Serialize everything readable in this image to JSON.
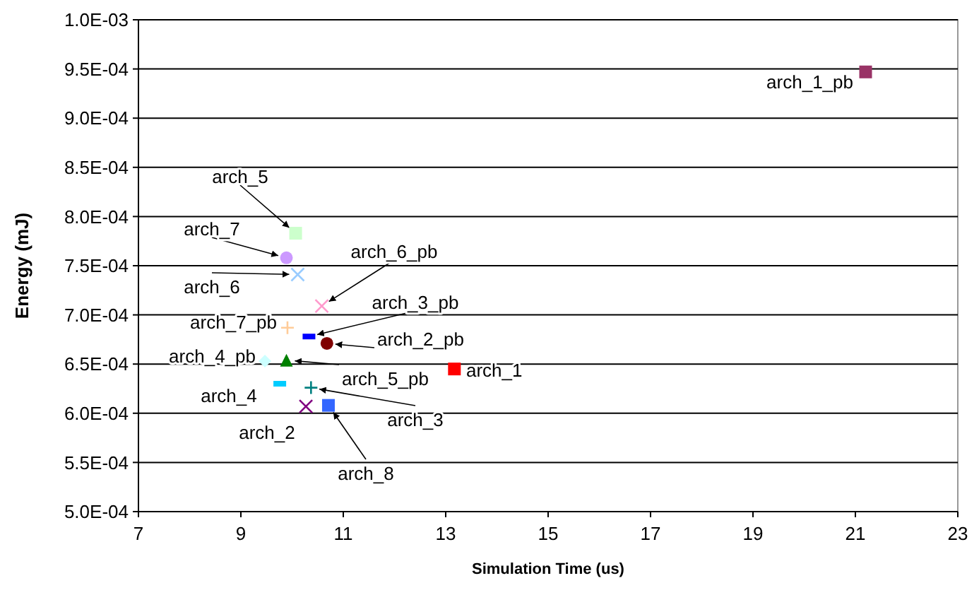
{
  "chart_data": {
    "type": "scatter",
    "xlabel": "Simulation Time (us)",
    "ylabel": "Energy (mJ)",
    "xlim": [
      7,
      23
    ],
    "xticks": [
      7,
      9,
      11,
      13,
      15,
      17,
      19,
      21,
      23
    ],
    "ylim": [
      0.0005,
      0.001
    ],
    "yticks": [
      {
        "value": 0.0005,
        "label": "5.0E-04"
      },
      {
        "value": 0.00055,
        "label": "5.5E-04"
      },
      {
        "value": 0.0006,
        "label": "6.0E-04"
      },
      {
        "value": 0.00065,
        "label": "6.5E-04"
      },
      {
        "value": 0.0007,
        "label": "7.0E-04"
      },
      {
        "value": 0.00075,
        "label": "7.5E-04"
      },
      {
        "value": 0.0008,
        "label": "8.0E-04"
      },
      {
        "value": 0.00085,
        "label": "8.5E-04"
      },
      {
        "value": 0.0009,
        "label": "9.0E-04"
      },
      {
        "value": 0.00095,
        "label": "9.5E-04"
      },
      {
        "value": 0.001,
        "label": "1.0E-03"
      }
    ],
    "grid": "y",
    "series": [
      {
        "name": "arch_1_pb",
        "color": "#993366",
        "marker": "square",
        "x": [
          21.2
        ],
        "values": [
          0.000947
        ]
      },
      {
        "name": "arch_5",
        "color": "#ccffcc",
        "marker": "square",
        "x": [
          10.07
        ],
        "values": [
          0.000783
        ]
      },
      {
        "name": "arch_7",
        "color": "#cc99ff",
        "marker": "circle",
        "x": [
          9.89
        ],
        "values": [
          0.000758
        ]
      },
      {
        "name": "arch_6",
        "color": "#99ccff",
        "marker": "cross",
        "x": [
          10.11
        ],
        "values": [
          0.000741
        ]
      },
      {
        "name": "arch_6_pb",
        "color": "#ff99cc",
        "marker": "cross",
        "x": [
          10.58
        ],
        "values": [
          0.000709
        ]
      },
      {
        "name": "arch_7_pb",
        "color": "#ffcc99",
        "marker": "plus",
        "x": [
          9.91
        ],
        "values": [
          0.000687
        ]
      },
      {
        "name": "arch_3_pb",
        "color": "#0000ff",
        "x": [
          10.33
        ],
        "values": [
          0.000678
        ]
      },
      {
        "name": "arch_2_pb",
        "color": "#800000",
        "marker": "circle",
        "x": [
          10.68
        ],
        "values": [
          0.000671
        ]
      },
      {
        "name": "arch_4_pb",
        "color": "#ccffff",
        "marker": "diamond",
        "x": [
          9.47
        ],
        "values": [
          0.000653
        ]
      },
      {
        "name": "arch_5_pb",
        "color": "#008000",
        "marker": "triangle",
        "x": [
          9.89
        ],
        "values": [
          0.000654
        ]
      },
      {
        "name": "arch_1",
        "color": "#ff0000",
        "marker": "square",
        "x": [
          13.17
        ],
        "values": [
          0.000645
        ]
      },
      {
        "name": "arch_4",
        "color": "#00ccff",
        "x": [
          9.76
        ],
        "values": [
          0.00063
        ]
      },
      {
        "name": "arch_3",
        "color": "#008080",
        "marker": "plus",
        "x": [
          10.37
        ],
        "values": [
          0.000626
        ]
      },
      {
        "name": "arch_2",
        "color": "#800080",
        "marker": "cross",
        "x": [
          10.27
        ],
        "values": [
          0.000607
        ]
      },
      {
        "name": "arch_8",
        "color": "#3366ff",
        "marker": "square",
        "x": [
          10.71
        ],
        "values": [
          0.000608
        ]
      }
    ]
  }
}
